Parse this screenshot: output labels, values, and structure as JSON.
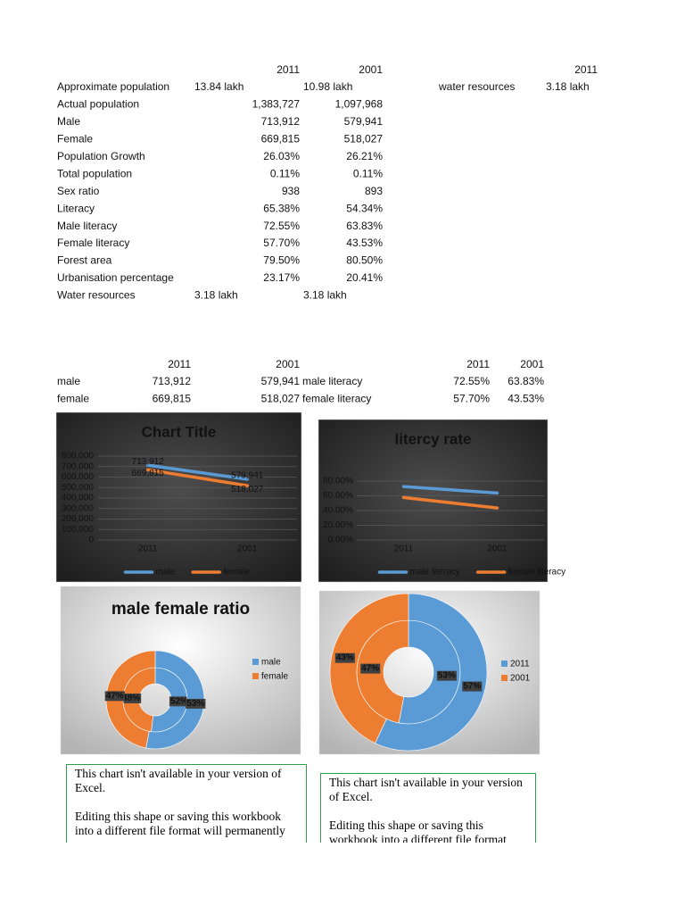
{
  "table": {
    "header": [
      "2011",
      "2001"
    ],
    "rows": [
      [
        "Approximate population",
        "13.84 lakh",
        "10.98 lakh"
      ],
      [
        "Actual population",
        "1,383,727",
        "1,097,968"
      ],
      [
        "Male",
        "713,912",
        "579,941"
      ],
      [
        "Female",
        "669,815",
        "518,027"
      ],
      [
        "Population Growth",
        "26.03%",
        "26.21%"
      ],
      [
        "Total population",
        "0.11%",
        "0.11%"
      ],
      [
        "Sex ratio",
        "938",
        "893"
      ],
      [
        "Literacy",
        "65.38%",
        "54.34%"
      ],
      [
        "Male literacy",
        "72.55%",
        "63.83%"
      ],
      [
        "Female literacy",
        "57.70%",
        "43.53%"
      ],
      [
        "Forest area",
        "79.50%",
        "80.50%"
      ],
      [
        "Urbanisation percentage",
        "23.17%",
        "20.41%"
      ],
      [
        "Water resources",
        "3.18 lakh",
        "3.18 lakh"
      ]
    ]
  },
  "side_table": {
    "header": "2011",
    "rows": [
      [
        "water resources",
        "3.18 lakh"
      ]
    ]
  },
  "table2": {
    "header": [
      "2011",
      "2001"
    ],
    "rows": [
      [
        "male",
        "713,912",
        "579,941"
      ],
      [
        "female",
        "669,815",
        "518,027"
      ]
    ]
  },
  "table3": {
    "header": [
      "2011",
      "2001"
    ],
    "rows": [
      [
        "male literacy",
        "72.55%",
        "63.83%"
      ],
      [
        "female literacy",
        "57.70%",
        "43.53%"
      ]
    ]
  },
  "chart_data": [
    {
      "type": "line",
      "title": "Chart Title",
      "categories": [
        "2011",
        "2001"
      ],
      "series": [
        {
          "name": "male",
          "color": "#5b9bd5",
          "values": [
            713912,
            579941
          ],
          "value_labels": [
            "713,912",
            "579,941"
          ]
        },
        {
          "name": "female",
          "color": "#ed7d31",
          "values": [
            669815,
            518027
          ],
          "value_labels": [
            "669,815",
            "518,027"
          ]
        }
      ],
      "ylim": [
        0,
        800000
      ],
      "yticks": [
        0,
        {
          "value": 100000,
          "label": "100,000"
        },
        {
          "value": 200000,
          "label": "200,000"
        },
        {
          "value": 300000,
          "label": "300,000"
        },
        {
          "value": 400000,
          "label": "400,000"
        },
        {
          "value": 500000,
          "label": "500,000"
        },
        {
          "value": 600000,
          "label": "600,000"
        },
        {
          "value": 700000,
          "label": "700,000"
        },
        {
          "value": 800000,
          "label": "800,000"
        }
      ],
      "grid": true,
      "legend": "bottom"
    },
    {
      "type": "line",
      "title": "litercy rate",
      "categories": [
        "2011",
        "2001"
      ],
      "series": [
        {
          "name": "male literacy",
          "color": "#5b9bd5",
          "values": [
            72.55,
            63.83
          ]
        },
        {
          "name": "female literacy",
          "color": "#ed7d31",
          "values": [
            57.7,
            43.53
          ]
        }
      ],
      "ylim": [
        0,
        80
      ],
      "yticks": [
        {
          "value": 0,
          "label": "0.00%"
        },
        {
          "value": 20,
          "label": "20.00%"
        },
        {
          "value": 40,
          "label": "40.00%"
        },
        {
          "value": 60,
          "label": "60.00%"
        },
        {
          "value": 80,
          "label": "80.00%"
        }
      ],
      "grid": true,
      "legend": "bottom"
    },
    {
      "type": "donut",
      "title": "male female ratio",
      "series": [
        {
          "name": "male",
          "color": "#5b9bd5",
          "values": [
            52,
            53
          ],
          "value_labels": [
            "52%",
            "53%"
          ]
        },
        {
          "name": "female",
          "color": "#ed7d31",
          "values": [
            48,
            47
          ],
          "value_labels": [
            "48%",
            "47%"
          ]
        }
      ],
      "legend": "right"
    },
    {
      "type": "donut",
      "series": [
        {
          "name": "2011",
          "color": "#5b9bd5",
          "values": [
            53,
            57
          ],
          "value_labels": [
            "53%",
            "57%"
          ]
        },
        {
          "name": "2001",
          "color": "#ed7d31",
          "values": [
            47,
            43
          ],
          "value_labels": [
            "47%",
            "43%"
          ]
        }
      ],
      "legend": "right"
    }
  ],
  "notes": [
    {
      "lines": [
        "This chart isn't available in your version of Excel.",
        "Editing this shape or saving this workbook into a different file format will permanently"
      ]
    },
    {
      "lines": [
        "This chart isn't available in your version of Excel.",
        "Editing this shape or saving this workbook into a different file format"
      ]
    }
  ]
}
